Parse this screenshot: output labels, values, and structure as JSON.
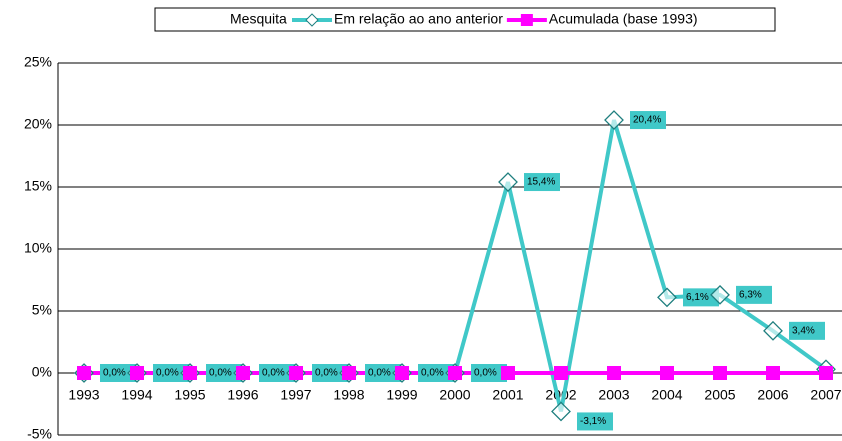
{
  "chart_data": {
    "type": "line",
    "legend_title": "Mesquita",
    "categories": [
      "1993",
      "1994",
      "1995",
      "1996",
      "1997",
      "1998",
      "1999",
      "2000",
      "2001",
      "2002",
      "2003",
      "2004",
      "2005",
      "2006",
      "2007"
    ],
    "series": [
      {
        "name": "Em relação ao ano anterior",
        "color": "#40c8c8",
        "marker": "diamond",
        "values": [
          0,
          0,
          0,
          0,
          0,
          0,
          0,
          0,
          15.4,
          -3.1,
          20.4,
          6.1,
          6.3,
          3.4,
          0.3
        ],
        "value_labels": [
          "0,0%",
          "0,0%",
          "0,0%",
          "0,0%",
          "0,0%",
          "0,0%",
          "0,0%",
          "0,0%",
          "15,4%",
          "-3,1%",
          "20,4%",
          "6,1%",
          "6,3%",
          "3,4%",
          null
        ]
      },
      {
        "name": "Acumulada (base 1993)",
        "color": "#ff00ff",
        "marker": "square",
        "values": [
          0,
          0,
          0,
          0,
          0,
          0,
          0,
          0,
          0,
          0,
          0,
          0,
          0,
          0,
          0
        ]
      }
    ],
    "ylim": [
      -5,
      25
    ],
    "yticks": [
      {
        "value": -5,
        "label": "-5%"
      },
      {
        "value": 0,
        "label": "0%"
      },
      {
        "value": 5,
        "label": "5%"
      },
      {
        "value": 10,
        "label": "10%"
      },
      {
        "value": 15,
        "label": "15%"
      },
      {
        "value": 20,
        "label": "20%"
      },
      {
        "value": 25,
        "label": "25%"
      }
    ],
    "grid": true,
    "legend": "top"
  }
}
